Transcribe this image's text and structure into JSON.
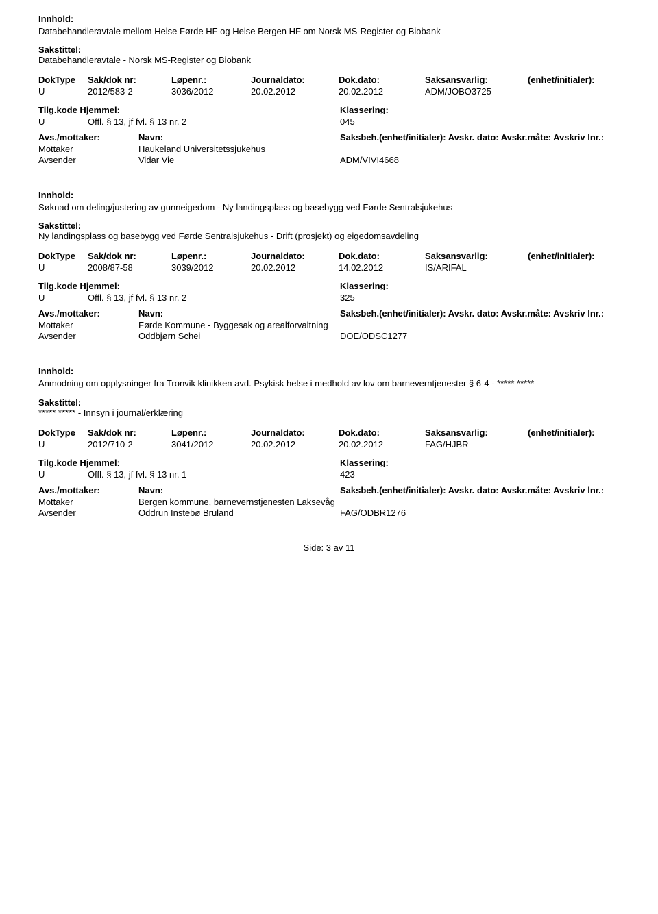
{
  "labels": {
    "innhold": "Innhold:",
    "sakstittel": "Sakstittel:",
    "doktype": "DokType",
    "saknr": "Sak/dok nr:",
    "lopenr": "Løpenr.:",
    "journaldato": "Journaldato:",
    "dokdato": "Dok.dato:",
    "saksansvarlig": "Saksansvarlig:",
    "enhet": "(enhet/initialer):",
    "tilgkode": "Tilg.kode Hjemmel:",
    "klassering": "Klassering:",
    "avsmot": "Avs./mottaker:",
    "navn": "Navn:",
    "saksbeh_line": "Saksbeh.(enhet/initialer): Avskr. dato:  Avskr.måte: Avskriv lnr.:"
  },
  "records": [
    {
      "innhold": "Databehandleravtale mellom Helse Førde HF og Helse Bergen HF om Norsk MS-Register og Biobank",
      "sakstittel": "Databehandleravtale - Norsk MS-Register og Biobank",
      "doktype": "U",
      "saknr": "2012/583-2",
      "lopenr": "3036/2012",
      "journaldato": "20.02.2012",
      "dokdato": "20.02.2012",
      "saksansvarlig": "ADM/JOBO3725",
      "hj_code": "U",
      "hj_text": "Offl. § 13, jf fvl. § 13 nr. 2",
      "klass": "045",
      "parties": [
        {
          "role": "Mottaker",
          "name": "Haukeland Universitetssjukehus",
          "ref": ""
        },
        {
          "role": "Avsender",
          "name": "Vidar Vie",
          "ref": "ADM/VIVI4668"
        }
      ]
    },
    {
      "innhold": "Søknad om deling/justering av gunneigedom - Ny landingsplass og basebygg ved Førde Sentralsjukehus",
      "sakstittel": "Ny landingsplass og basebygg ved Førde Sentralsjukehus - Drift (prosjekt) og eigedomsavdeling",
      "doktype": "U",
      "saknr": "2008/87-58",
      "lopenr": "3039/2012",
      "journaldato": "20.02.2012",
      "dokdato": "14.02.2012",
      "saksansvarlig": "IS/ARIFAL",
      "hj_code": "U",
      "hj_text": "Offl. § 13, jf fvl. § 13 nr. 2",
      "klass": "325",
      "parties": [
        {
          "role": "Mottaker",
          "name": "Førde Kommune  - Byggesak og arealforvaltning",
          "ref": ""
        },
        {
          "role": "Avsender",
          "name": "Oddbjørn Schei",
          "ref": "DOE/ODSC1277"
        }
      ]
    },
    {
      "innhold": "Anmodning om opplysninger fra Tronvik klinikken avd. Psykisk helse i medhold av lov om barneverntjenester § 6-4 - ***** *****",
      "sakstittel": "***** ***** - Innsyn i journal/erklæring",
      "doktype": "U",
      "saknr": "2012/710-2",
      "lopenr": "3041/2012",
      "journaldato": "20.02.2012",
      "dokdato": "20.02.2012",
      "saksansvarlig": "FAG/HJBR",
      "hj_code": "U",
      "hj_text": "Offl. § 13, jf fvl. § 13 nr. 1",
      "klass": "423",
      "parties": [
        {
          "role": "Mottaker",
          "name": "Bergen kommune, barnevernstjenesten Laksevåg",
          "ref": ""
        },
        {
          "role": "Avsender",
          "name": "Oddrun Instebø Bruland",
          "ref": "FAG/ODBR1276"
        }
      ]
    }
  ],
  "footer": "Side: 3  av  11"
}
